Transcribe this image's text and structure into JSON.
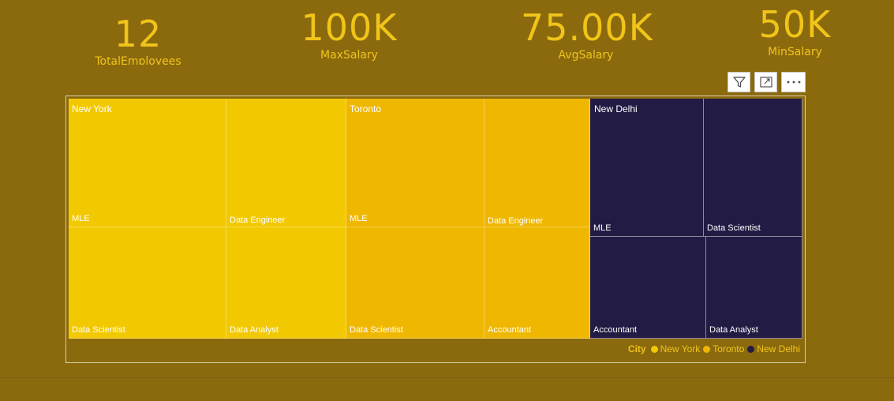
{
  "cards": [
    {
      "value": "12",
      "label": "TotalEmployees"
    },
    {
      "value": "100K",
      "label": "MaxSalary"
    },
    {
      "value": "75.00K",
      "label": "AvgSalary"
    },
    {
      "value": "50K",
      "label": "MinSalary"
    }
  ],
  "toolbar": {
    "filter_icon": "filter-icon",
    "focus_icon": "focus-mode-icon",
    "more_icon": "more-options-icon"
  },
  "treemap": {
    "groups": [
      {
        "name": "New York",
        "color": "#f2c900",
        "items": [
          "MLE",
          "Data Engineer",
          "Data Scientist",
          "Data Analyst"
        ]
      },
      {
        "name": "Toronto",
        "color": "#f0b700",
        "items": [
          "MLE",
          "Data Engineer",
          "Data Scientist",
          "Accountant"
        ]
      },
      {
        "name": "New Delhi",
        "color": "#221b44",
        "items": [
          "MLE",
          "Data Scientist",
          "Accountant",
          "Data Analyst"
        ]
      }
    ]
  },
  "legend": {
    "title": "City",
    "items": [
      {
        "label": "New York",
        "color": "#f2c900"
      },
      {
        "label": "Toronto",
        "color": "#f0b700"
      },
      {
        "label": "New Delhi",
        "color": "#221b44"
      }
    ]
  },
  "colors": {
    "background": "#8b6a0e",
    "accent_text": "#f0c419"
  }
}
